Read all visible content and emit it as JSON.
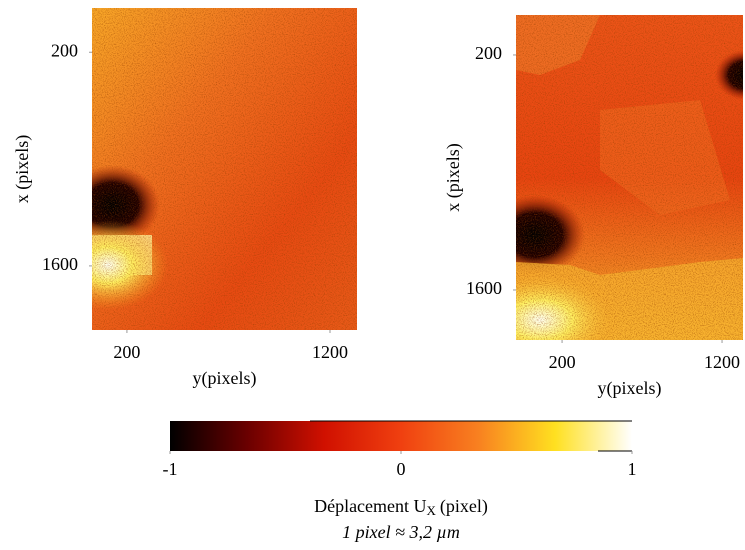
{
  "chart_data": [
    {
      "type": "heatmap",
      "xlabel": "y(pixels)",
      "ylabel": "x (pixels)",
      "xlim": [
        28,
        1333
      ],
      "ylim": [
        -90,
        2020
      ],
      "xticks": [
        200,
        1200
      ],
      "yticks": [
        200,
        1600
      ]
    },
    {
      "type": "heatmap",
      "xlabel": "y(pixels)",
      "ylabel": "x (pixels)",
      "xlim": [
        -88,
        1331
      ],
      "ylim": [
        -38,
        1898
      ],
      "xticks": [
        200,
        1200
      ],
      "yticks": [
        200,
        1600
      ]
    },
    {
      "type": "colorbar",
      "label": "Déplacement U",
      "label_subscript": "X",
      "label_unit": "(pixel)",
      "note": "1 pixel ≈ 3,2 µm",
      "xlim": [
        -1,
        1
      ],
      "xticks": [
        -1,
        0,
        1
      ],
      "colors": [
        "#000000",
        "#6a0000",
        "#d01000",
        "#f04010",
        "#f88020",
        "#ffe020",
        "#ffffff"
      ]
    }
  ]
}
